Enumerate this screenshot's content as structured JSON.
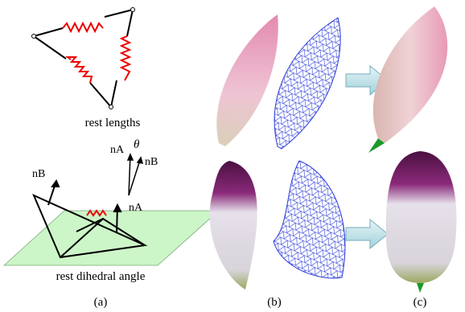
{
  "panel_a": {
    "label": "(a)",
    "spring_caption": "rest lengths",
    "normal_a": "nA",
    "angle_symbol": "θ",
    "normal_b": "nB",
    "hinge_normal_b": "nB",
    "hinge_normal_a": "nA",
    "hinge_caption": "rest dihedral angle"
  },
  "panel_b": {
    "label": "(b)"
  },
  "panel_c": {
    "label": "(c)"
  }
}
